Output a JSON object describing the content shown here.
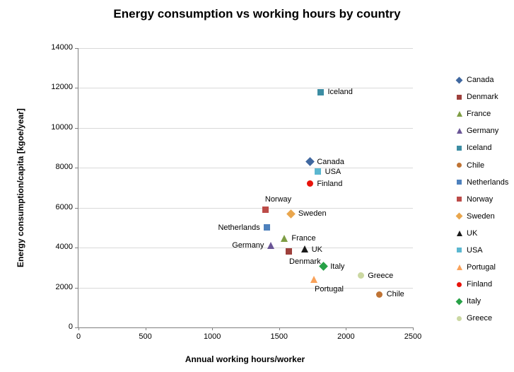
{
  "chart_data": {
    "type": "scatter",
    "title": "Energy consumption vs working hours by country",
    "xlabel": "Annual working hours/worker",
    "ylabel": "Energy consumption/capita [kgoe/year]",
    "xlim": [
      0,
      2500
    ],
    "ylim": [
      0,
      14000
    ],
    "x_ticks": [
      0,
      500,
      1000,
      1500,
      2000,
      2500
    ],
    "y_ticks": [
      0,
      2000,
      4000,
      6000,
      8000,
      10000,
      12000,
      14000
    ],
    "grid": "horizontal",
    "legend_position": "right",
    "series": [
      {
        "name": "Canada",
        "x": 1730,
        "y": 8300,
        "marker": "diamond",
        "color": "#4068A0",
        "label_side": "right"
      },
      {
        "name": "Denmark",
        "x": 1570,
        "y": 3800,
        "marker": "square",
        "color": "#9E403C",
        "label_side": "below-right"
      },
      {
        "name": "France",
        "x": 1540,
        "y": 4450,
        "marker": "triangle",
        "color": "#7E9D44",
        "label_side": "right"
      },
      {
        "name": "Germany",
        "x": 1440,
        "y": 4100,
        "marker": "triangle",
        "color": "#6A5596",
        "label_side": "left"
      },
      {
        "name": "Iceland",
        "x": 1810,
        "y": 11800,
        "marker": "square",
        "color": "#3C8DA3",
        "label_side": "right"
      },
      {
        "name": "Chile",
        "x": 2250,
        "y": 1650,
        "marker": "circle",
        "color": "#BF7334",
        "label_side": "right"
      },
      {
        "name": "Netherlands",
        "x": 1410,
        "y": 5000,
        "marker": "square",
        "color": "#4E81BD",
        "label_side": "left"
      },
      {
        "name": "Norway",
        "x": 1400,
        "y": 5900,
        "marker": "square",
        "color": "#BC4B48",
        "label_side": "above-right"
      },
      {
        "name": "Sweden",
        "x": 1590,
        "y": 5700,
        "marker": "diamond",
        "color": "#E9A64D",
        "label_side": "right"
      },
      {
        "name": "UK",
        "x": 1690,
        "y": 3900,
        "marker": "triangle",
        "color": "#1A1A1A",
        "label_side": "right"
      },
      {
        "name": "USA",
        "x": 1790,
        "y": 7800,
        "marker": "square",
        "color": "#5BB7D0",
        "label_side": "right"
      },
      {
        "name": "Portugal",
        "x": 1760,
        "y": 2400,
        "marker": "triangle",
        "color": "#F9A25A",
        "label_side": "below-right"
      },
      {
        "name": "Finland",
        "x": 1730,
        "y": 7200,
        "marker": "circle",
        "color": "#E8130B",
        "label_side": "right"
      },
      {
        "name": "Italy",
        "x": 1830,
        "y": 3050,
        "marker": "diamond",
        "color": "#27A147",
        "label_side": "right"
      },
      {
        "name": "Greece",
        "x": 2110,
        "y": 2600,
        "marker": "circle",
        "color": "#CBD8A2",
        "label_side": "right"
      }
    ]
  }
}
